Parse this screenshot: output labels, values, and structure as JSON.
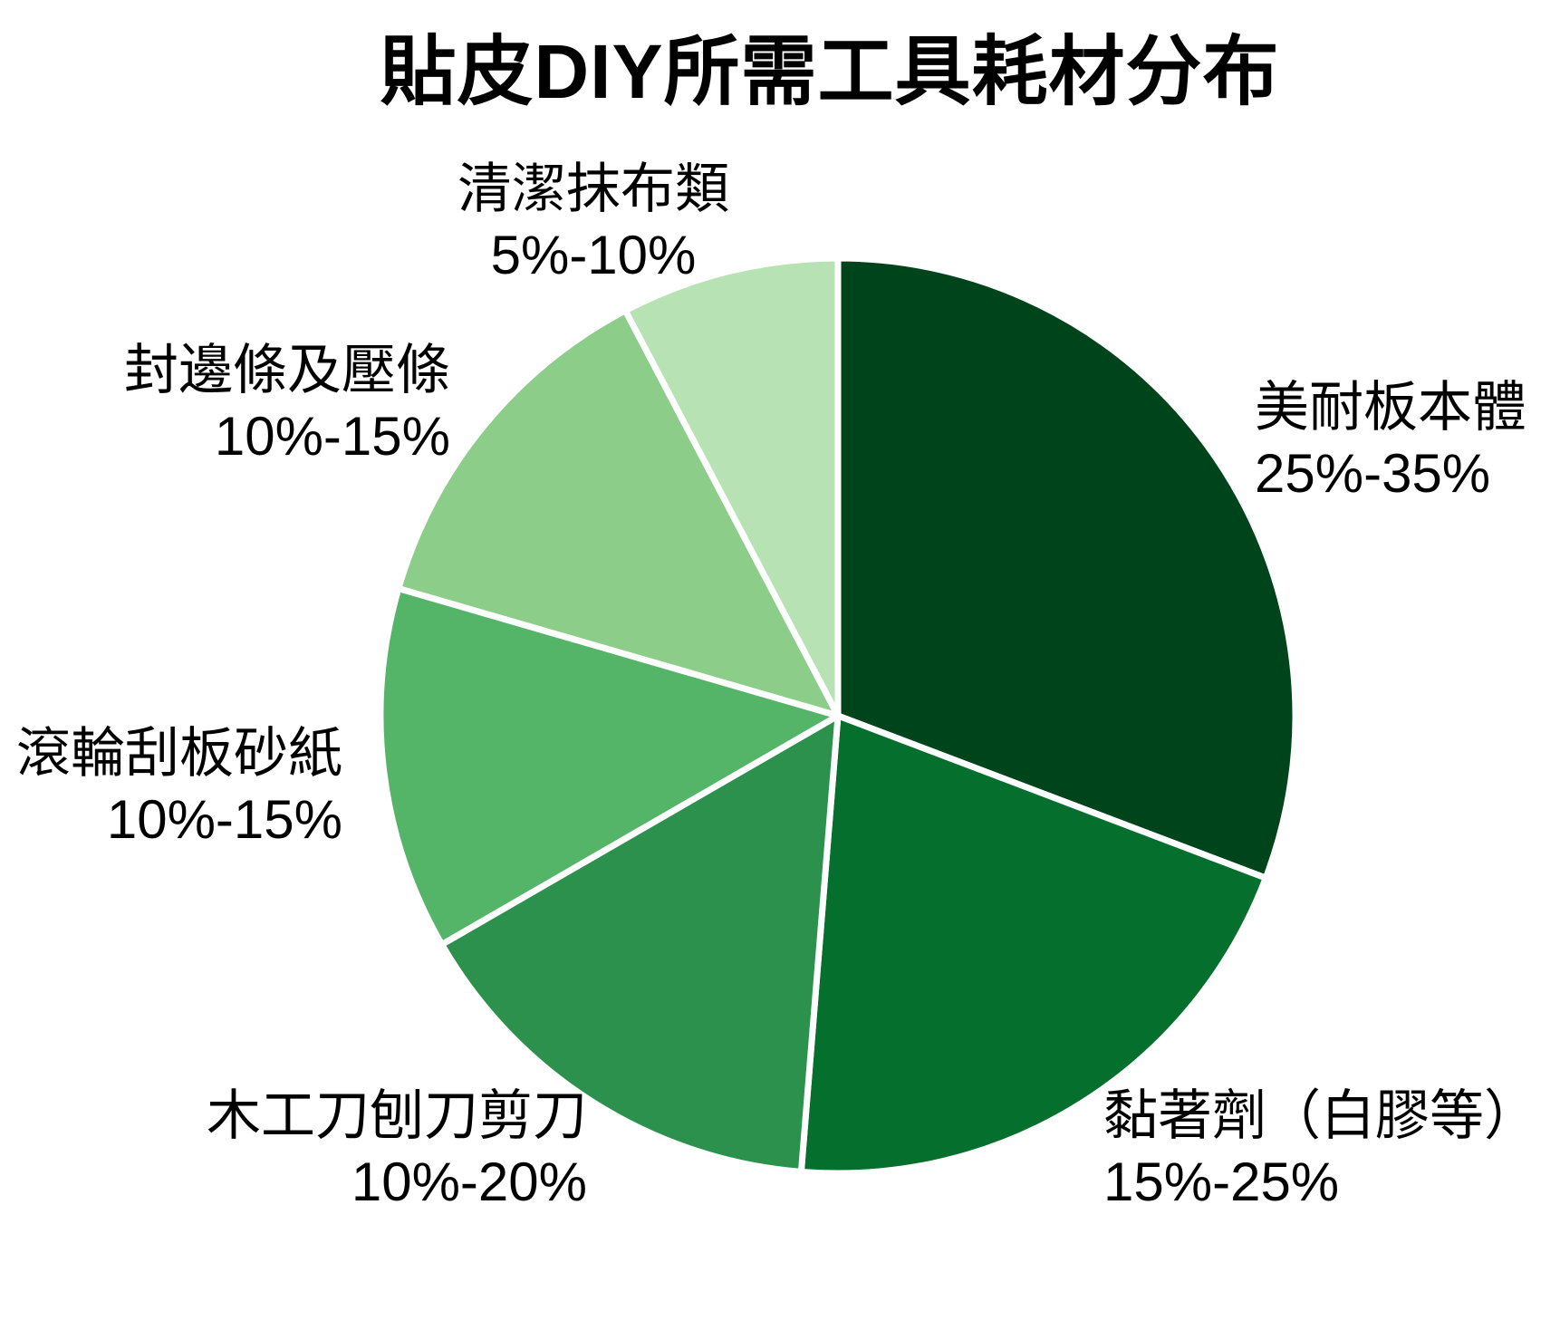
{
  "title": "貼皮DIY所需工具耗材分布",
  "chart_data": {
    "type": "pie",
    "title": "貼皮DIY所需工具耗材分布",
    "direction": "clockwise",
    "start_angle": "top (12 o'clock)",
    "legend_position": "labels around pie",
    "background_color": "#ffffff",
    "separator_color": "#ffffff",
    "slices": [
      {
        "label": "美耐板本體",
        "range": "25%-35%",
        "value": 30,
        "color": "#00441b"
      },
      {
        "label": "黏著劑（白膠等）",
        "range": "15%-25%",
        "value": 20,
        "color": "#056f2e"
      },
      {
        "label": "木工刀刨刀剪刀",
        "range": "10%-20%",
        "value": 15,
        "color": "#2c914c"
      },
      {
        "label": "滾輪刮板砂紙",
        "range": "10%-15%",
        "value": 12.5,
        "color": "#54b467"
      },
      {
        "label": "封邊條及壓條",
        "range": "10%-15%",
        "value": 12.5,
        "color": "#8ccd89"
      },
      {
        "label": "清潔抹布類",
        "range": "5%-10%",
        "value": 7.5,
        "color": "#b7e2b3"
      }
    ]
  }
}
